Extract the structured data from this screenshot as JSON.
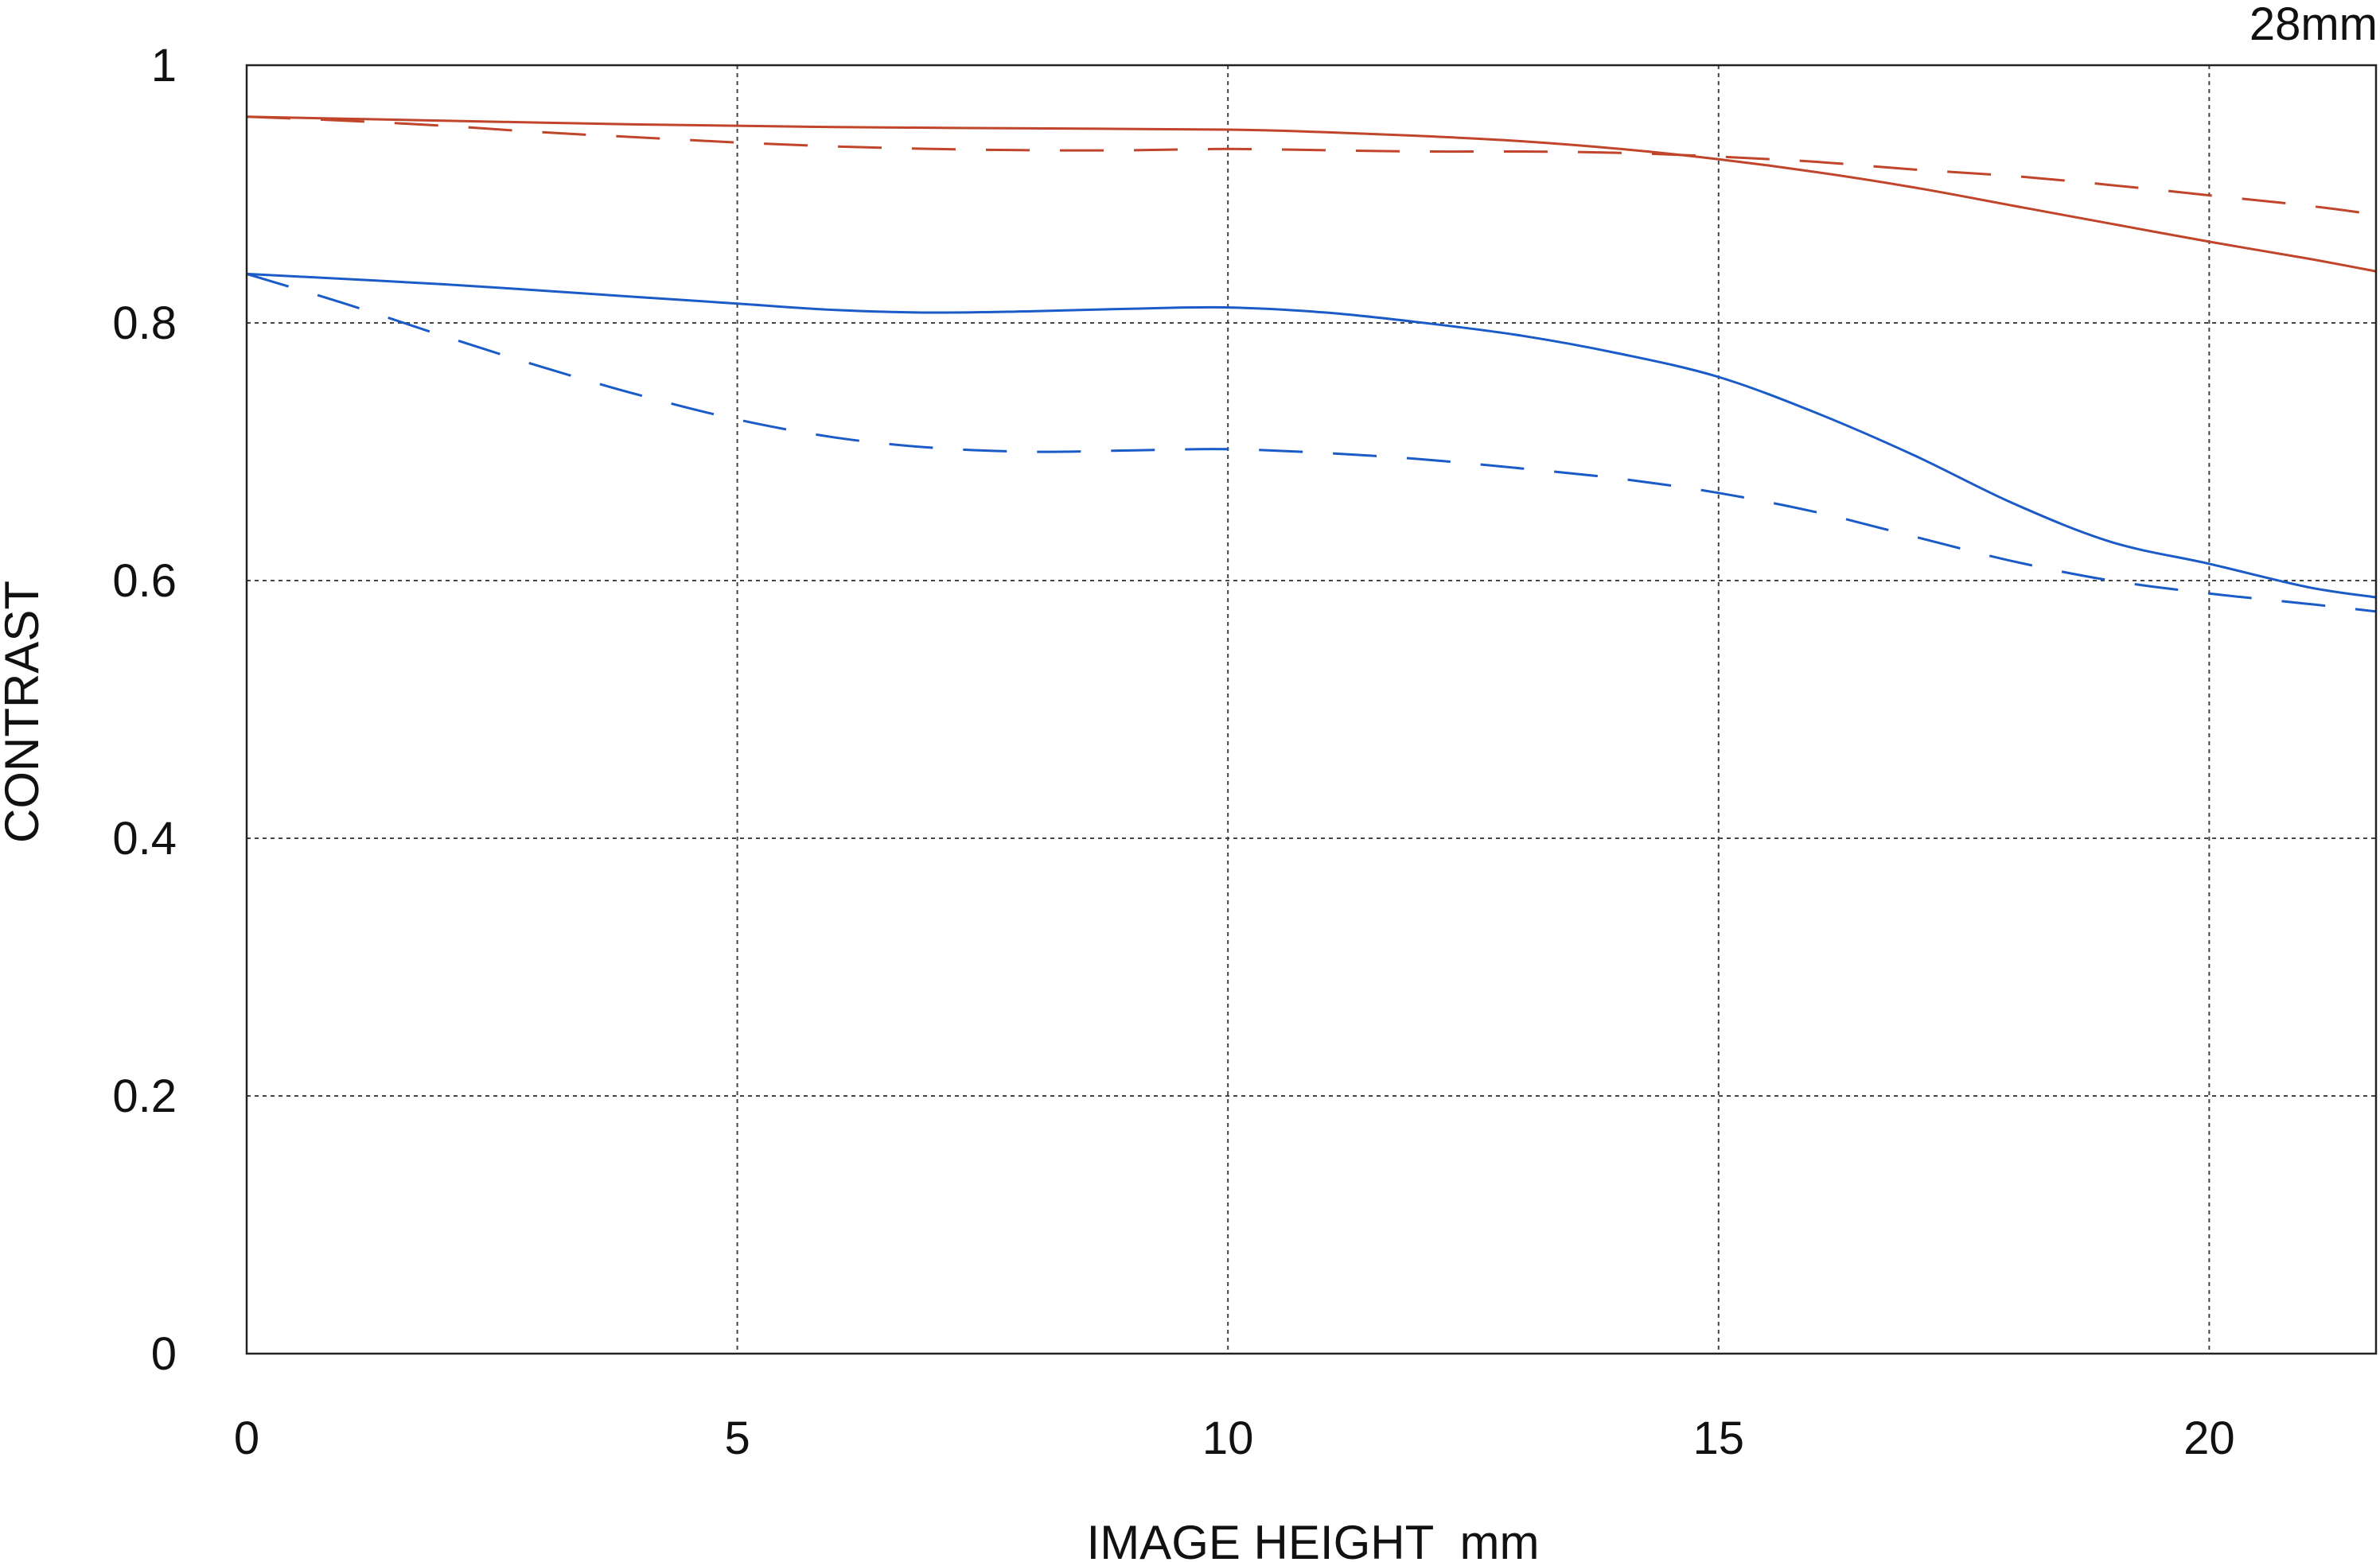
{
  "chart_data": {
    "type": "line",
    "title": "28mm",
    "xlabel": "IMAGE HEIGHT  mm",
    "ylabel": "CONTRAST",
    "xlim": [
      0,
      21.7
    ],
    "ylim": [
      0,
      1
    ],
    "x_ticks": [
      0,
      5,
      10,
      15,
      20
    ],
    "x_tick_labels": [
      "0",
      "5",
      "10",
      "15",
      "20"
    ],
    "y_ticks": [
      0,
      0.2,
      0.4,
      0.6,
      0.8,
      1
    ],
    "y_tick_labels": [
      "0",
      "0.2",
      "0.4",
      "0.6",
      "0.8",
      "1"
    ],
    "grid": true,
    "legend": "none",
    "series": [
      {
        "color": "#c0452a",
        "style": "solid",
        "x": [
          0,
          2,
          4,
          6,
          8,
          10,
          11,
          12,
          13,
          14,
          15,
          16,
          17,
          18,
          19,
          20,
          21,
          21.7
        ],
        "y": [
          0.96,
          0.957,
          0.954,
          0.952,
          0.951,
          0.95,
          0.948,
          0.945,
          0.941,
          0.935,
          0.927,
          0.917,
          0.905,
          0.891,
          0.877,
          0.863,
          0.85,
          0.84
        ]
      },
      {
        "color": "#c0452a",
        "style": "dashed",
        "x": [
          0,
          1,
          2,
          3,
          4,
          5,
          6,
          7,
          8,
          9,
          10,
          11,
          12,
          13,
          14,
          15,
          16,
          17,
          18,
          19,
          20,
          21,
          21.7
        ],
        "y": [
          0.96,
          0.957,
          0.953,
          0.948,
          0.944,
          0.94,
          0.937,
          0.935,
          0.934,
          0.934,
          0.935,
          0.934,
          0.933,
          0.933,
          0.932,
          0.929,
          0.925,
          0.919,
          0.914,
          0.907,
          0.899,
          0.891,
          0.884
        ]
      },
      {
        "color": "#1a5bc7",
        "style": "solid",
        "x": [
          0,
          2,
          4,
          5,
          6,
          7,
          8,
          9,
          10,
          11,
          12,
          13,
          14,
          15,
          16,
          17,
          18,
          19,
          20,
          21,
          21.7
        ],
        "y": [
          0.838,
          0.83,
          0.82,
          0.815,
          0.81,
          0.808,
          0.809,
          0.811,
          0.812,
          0.808,
          0.8,
          0.79,
          0.776,
          0.758,
          0.73,
          0.697,
          0.66,
          0.63,
          0.613,
          0.595,
          0.587
        ]
      },
      {
        "color": "#1a5bc7",
        "style": "dashed",
        "x": [
          0,
          1,
          2,
          3,
          4,
          5,
          6,
          7,
          8,
          9,
          10,
          11,
          12,
          13,
          14,
          15,
          16,
          17,
          18,
          19,
          20,
          21,
          21.7
        ],
        "y": [
          0.838,
          0.815,
          0.79,
          0.766,
          0.744,
          0.725,
          0.711,
          0.703,
          0.7,
          0.701,
          0.702,
          0.699,
          0.694,
          0.687,
          0.679,
          0.668,
          0.653,
          0.634,
          0.615,
          0.6,
          0.59,
          0.582,
          0.576
        ]
      }
    ]
  }
}
